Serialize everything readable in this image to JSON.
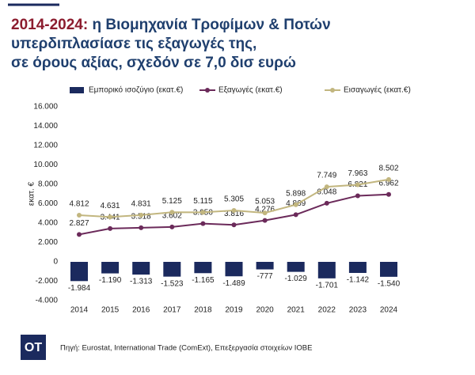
{
  "chart_data": {
    "type": "combo",
    "title": {
      "highlight": "2014-2024:",
      "lines": [
        "η Βιομηχανία Τροφίμων & Ποτών",
        "υπερδιπλασίασε τις εξαγωγές της,",
        "σε όρους αξίας, σχεδόν σε 7,0 δισ ευρώ"
      ]
    },
    "y_label": "εκατ. €",
    "categories": [
      "2014",
      "2015",
      "2016",
      "2017",
      "2018",
      "2019",
      "2020",
      "2021",
      "2022",
      "2023",
      "2024"
    ],
    "series": [
      {
        "name": "Εμπορικό ισοζύγιο (εκατ.€)",
        "type": "bar",
        "color": "#1b2a5e",
        "values": [
          -1984,
          -1190,
          -1313,
          -1523,
          -1165,
          -1489,
          -777,
          -1029,
          -1701,
          -1142,
          -1540
        ],
        "value_labels": [
          "-1.984",
          "-1.190",
          "-1.313",
          "-1.523",
          "-1.165",
          "-1.489",
          "-777",
          "-1.029",
          "-1.701",
          "-1.142",
          "-1.540"
        ]
      },
      {
        "name": "Εξαγωγές (εκατ.€)",
        "type": "line",
        "color": "#6b2a5a",
        "values": [
          2827,
          3441,
          3518,
          3602,
          3950,
          3816,
          4276,
          4869,
          6048,
          6821,
          6962
        ],
        "value_labels": [
          "2.827",
          "3.441",
          "3.518",
          "3.602",
          "3.950",
          "3.816",
          "4.276",
          "4.869",
          "6.048",
          "6.821",
          "6.962"
        ]
      },
      {
        "name": "Εισαγωγές (εκατ.€)",
        "type": "line",
        "color": "#c2b67f",
        "values": [
          4812,
          4631,
          4831,
          5125,
          5115,
          5305,
          5053,
          5898,
          7749,
          7963,
          8502
        ],
        "value_labels": [
          "4.812",
          "4.631",
          "4.831",
          "5.125",
          "5.115",
          "5.305",
          "5.053",
          "5.898",
          "7.749",
          "7.963",
          "8.502"
        ]
      }
    ],
    "ylim": [
      -4000,
      16000
    ],
    "yticks": [
      {
        "value": -4000,
        "label": "-4.000"
      },
      {
        "value": -2000,
        "label": "-2.000"
      },
      0,
      {
        "value": 2000,
        "label": "2.000"
      },
      {
        "value": 4000,
        "label": "4.000"
      },
      {
        "value": 6000,
        "label": "6.000"
      },
      {
        "value": 8000,
        "label": "8.000"
      },
      {
        "value": 10000,
        "label": "10.000"
      },
      {
        "value": 12000,
        "label": "12.000"
      },
      {
        "value": 14000,
        "label": "14.000"
      },
      {
        "value": 16000,
        "label": "16.000"
      }
    ],
    "legend": "top",
    "grid": false
  },
  "footer": {
    "logo": "OT",
    "source": "Πηγή: Eurostat, International Trade (ComExt), Επεξεργασία στοιχείων ΙΟΒΕ"
  }
}
